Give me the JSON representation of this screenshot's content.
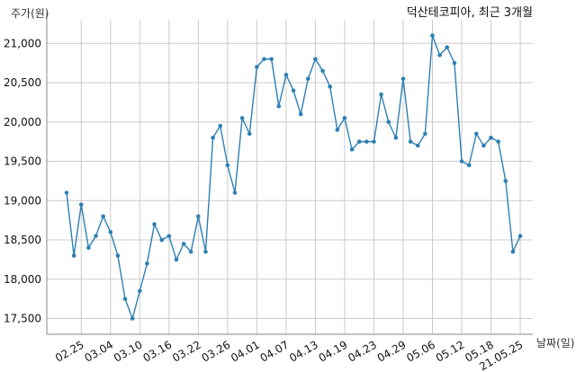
{
  "chart_data": {
    "type": "line",
    "title": "덕산테코피아, 최근 3개월",
    "xlabel": "날짜(일)",
    "ylabel": "주가(원)",
    "ylim": [
      17300,
      21300
    ],
    "grid": true,
    "line_color": "#2e7fb3",
    "y_ticks": [
      17500,
      18000,
      18500,
      19000,
      19500,
      20000,
      20500,
      21000
    ],
    "y_tick_labels": [
      "17,500",
      "18,000",
      "18,500",
      "19,000",
      "19,500",
      "20,000",
      "20,500",
      "21,000"
    ],
    "x_tick_indices": [
      2,
      6,
      10,
      14,
      18,
      22,
      26,
      30,
      34,
      38,
      42,
      46,
      50,
      54,
      58,
      62
    ],
    "x_tick_labels": [
      "02.25",
      "03.04",
      "03.10",
      "03.16",
      "03.22",
      "03.26",
      "04.01",
      "04.07",
      "04.13",
      "04.19",
      "04.23",
      "04.29",
      "05.06",
      "05.12",
      "05.18",
      "21.05.25"
    ],
    "series": [
      {
        "values": [
          19100,
          18300,
          18950,
          18400,
          18550,
          18800,
          18600,
          18300,
          17750,
          17500,
          17850,
          18200,
          18700,
          18500,
          18550,
          18250,
          18450,
          18350,
          18800,
          18350,
          19800,
          19950,
          19450,
          19100,
          20050,
          19850,
          20700,
          20800,
          20800,
          20200,
          20600,
          20400,
          20100,
          20550,
          20800,
          20650,
          20450,
          19900,
          20050,
          19650,
          19750,
          19750,
          19750,
          20350,
          20000,
          19800,
          20550,
          19750,
          19700,
          19850,
          21100,
          20850,
          20950,
          20750,
          19500,
          19450,
          19850,
          19700,
          19800,
          19750,
          19250,
          18350,
          18550
        ]
      }
    ]
  }
}
